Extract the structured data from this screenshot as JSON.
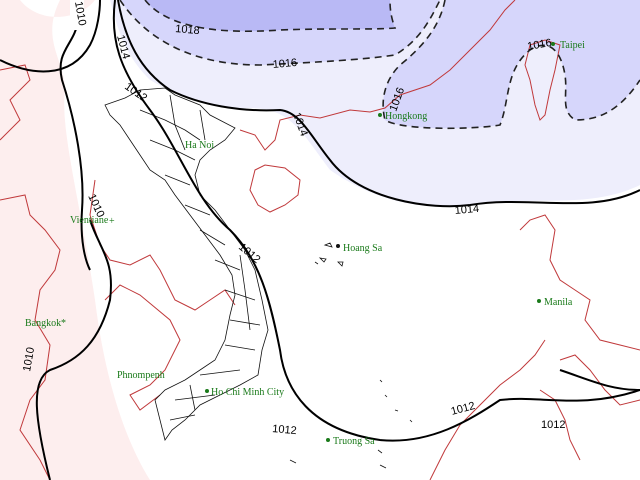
{
  "map": {
    "colors": {
      "low_fill": "#fdeeee",
      "band_1014": "#eeeefc",
      "band_1016": "#d6d6fb",
      "band_1018": "#b9b9f5",
      "coastline": "#c0393b",
      "city": "#1a7a1a",
      "isobar": "#000000"
    },
    "isobar_labels": {
      "l1010_top": "1010",
      "l1010_mid": "1010",
      "l1010_low": "1010",
      "l1012_north": "1012",
      "l1012_center": "1012",
      "l1012_south": "1012",
      "l1012_east": "1012",
      "l1012_se": "1012",
      "l1014_north": "1014",
      "l1014_center": "1014",
      "l1014_east": "1014",
      "l1016_north": "1016",
      "l1016_hk": "1016",
      "l1016_tw": "1016",
      "l1018": "1018"
    },
    "cities": {
      "hanoi": "Ha Noi",
      "vientiane": "Vientiane",
      "bangkok": "Bangkok",
      "phnompenh": "Phnompenh",
      "hcmc": "Ho Chi Minh City",
      "hongkong": "Hongkong",
      "taipei": "Taipei",
      "manila": "Manila"
    },
    "islands": {
      "hoangsa": "Hoang Sa",
      "truongsa": "Truong Sa"
    }
  }
}
